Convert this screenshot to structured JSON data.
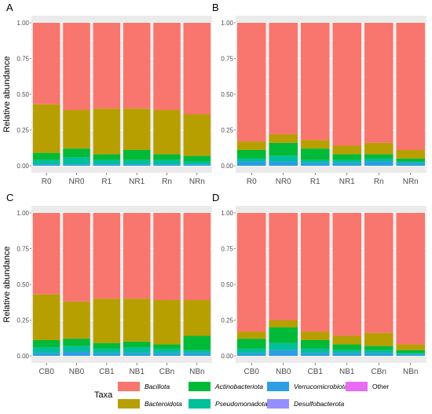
{
  "chart_data": [
    {
      "type": "bar",
      "stacked": true,
      "panel": "A",
      "ylabel": "Relative abundance",
      "categories": [
        "R0",
        "NR0",
        "R1",
        "NR1",
        "Rn",
        "NRn"
      ],
      "yticks": [
        "0.00",
        "0.25",
        "0.50",
        "0.75",
        "1.00"
      ],
      "ylim": [
        0,
        1
      ],
      "series": [
        {
          "name": "Verrucomicrobiota",
          "values": [
            0.01,
            0.01,
            0.01,
            0.01,
            0.01,
            0.01
          ]
        },
        {
          "name": "Pseudomonadota",
          "values": [
            0.03,
            0.05,
            0.03,
            0.03,
            0.03,
            0.02
          ]
        },
        {
          "name": "Actinobacteriota",
          "values": [
            0.05,
            0.06,
            0.04,
            0.07,
            0.04,
            0.04
          ]
        },
        {
          "name": "Bacteroidota",
          "values": [
            0.34,
            0.27,
            0.32,
            0.29,
            0.31,
            0.29
          ]
        },
        {
          "name": "Bacillota",
          "values": [
            0.57,
            0.61,
            0.6,
            0.6,
            0.61,
            0.64
          ]
        }
      ]
    },
    {
      "type": "bar",
      "stacked": true,
      "panel": "B",
      "ylabel": "",
      "categories": [
        "R0",
        "NR0",
        "R1",
        "NR1",
        "Rn",
        "NRn"
      ],
      "yticks": [
        "0.00",
        "0.25",
        "0.50",
        "0.75",
        "1.00"
      ],
      "ylim": [
        0,
        1
      ],
      "series": [
        {
          "name": "Verrucomicrobiota",
          "values": [
            0.03,
            0.03,
            0.02,
            0.02,
            0.03,
            0.02
          ]
        },
        {
          "name": "Pseudomonadota",
          "values": [
            0.02,
            0.04,
            0.02,
            0.02,
            0.02,
            0.01
          ]
        },
        {
          "name": "Actinobacteriota",
          "values": [
            0.06,
            0.09,
            0.08,
            0.04,
            0.03,
            0.02
          ]
        },
        {
          "name": "Bacteroidota",
          "values": [
            0.06,
            0.06,
            0.06,
            0.06,
            0.08,
            0.06
          ]
        },
        {
          "name": "Bacillota",
          "values": [
            0.83,
            0.78,
            0.82,
            0.86,
            0.84,
            0.89
          ]
        }
      ]
    },
    {
      "type": "bar",
      "stacked": true,
      "panel": "C",
      "ylabel": "Relative abundance",
      "categories": [
        "CB0",
        "NB0",
        "CB1",
        "NB1",
        "CBn",
        "NBn"
      ],
      "yticks": [
        "0.00",
        "0.25",
        "0.50",
        "0.75",
        "1.00"
      ],
      "ylim": [
        0,
        1
      ],
      "series": [
        {
          "name": "Verrucomicrobiota",
          "values": [
            0.02,
            0.03,
            0.02,
            0.02,
            0.02,
            0.02
          ]
        },
        {
          "name": "Pseudomonadota",
          "values": [
            0.04,
            0.04,
            0.03,
            0.04,
            0.03,
            0.02
          ]
        },
        {
          "name": "Actinobacteriota",
          "values": [
            0.05,
            0.05,
            0.04,
            0.04,
            0.03,
            0.1
          ]
        },
        {
          "name": "Bacteroidota",
          "values": [
            0.32,
            0.26,
            0.31,
            0.3,
            0.31,
            0.25
          ]
        },
        {
          "name": "Bacillota",
          "values": [
            0.57,
            0.62,
            0.6,
            0.6,
            0.61,
            0.61
          ]
        }
      ]
    },
    {
      "type": "bar",
      "stacked": true,
      "panel": "D",
      "ylabel": "",
      "categories": [
        "CB0",
        "NB0",
        "CB1",
        "NB1",
        "CBn",
        "NBn"
      ],
      "yticks": [
        "0.00",
        "0.25",
        "0.50",
        "0.75",
        "1.00"
      ],
      "ylim": [
        0,
        1
      ],
      "series": [
        {
          "name": "Verrucomicrobiota",
          "values": [
            0.02,
            0.04,
            0.02,
            0.02,
            0.02,
            0.01
          ]
        },
        {
          "name": "Pseudomonadota",
          "values": [
            0.03,
            0.05,
            0.03,
            0.02,
            0.02,
            0.01
          ]
        },
        {
          "name": "Actinobacteriota",
          "values": [
            0.07,
            0.11,
            0.06,
            0.04,
            0.03,
            0.02
          ]
        },
        {
          "name": "Bacteroidota",
          "values": [
            0.05,
            0.05,
            0.06,
            0.06,
            0.09,
            0.04
          ]
        },
        {
          "name": "Bacillota",
          "values": [
            0.83,
            0.75,
            0.83,
            0.86,
            0.84,
            0.92
          ]
        }
      ]
    }
  ],
  "legend": {
    "title": "Taxa",
    "items": [
      {
        "label": "Bacillota",
        "color": "#f8766d",
        "italic": true
      },
      {
        "label": "Actinobacteriota",
        "color": "#00ba38",
        "italic": true
      },
      {
        "label": "Verrucomicrobiota",
        "color": "#2d9de5",
        "italic": true
      },
      {
        "label": "Other",
        "color": "#e76bf3",
        "italic": false
      },
      {
        "label": "Bacteroidota",
        "color": "#b79f00",
        "italic": true
      },
      {
        "label": "Pseudomonadota",
        "color": "#00bf9a",
        "italic": true
      },
      {
        "label": "Desulfobacterota",
        "color": "#9590ff",
        "italic": true
      }
    ]
  },
  "colors": {
    "panel_background": "#ebebeb",
    "grid": "#ffffff",
    "Bacillota": "#f8766d",
    "Bacteroidota": "#b79f00",
    "Actinobacteriota": "#00ba38",
    "Pseudomonadota": "#00bf9a",
    "Verrucomicrobiota": "#2d9de5",
    "Desulfobacterota": "#9590ff",
    "Other": "#e76bf3"
  }
}
